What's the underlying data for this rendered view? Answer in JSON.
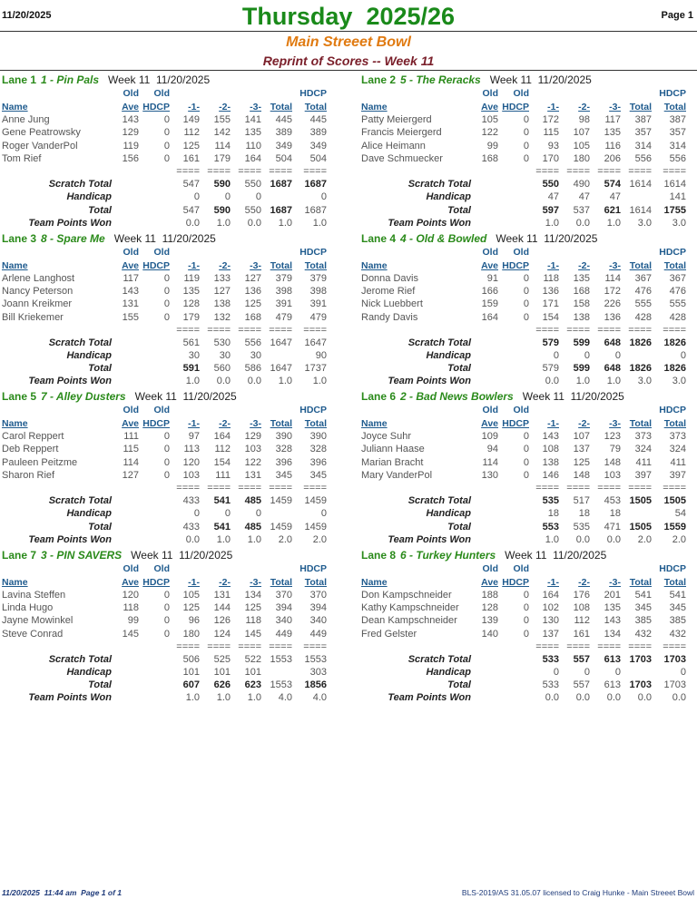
{
  "header": {
    "date": "11/20/2025",
    "title": "Thursday  2025/26",
    "page": "Page 1",
    "bowl": "Main Streeet Bowl",
    "subtitle": "Reprint of Scores -- Week 11"
  },
  "columns": {
    "top": [
      "Old",
      "Old",
      "HDCP"
    ],
    "bottom": [
      "Name",
      "Ave",
      "HDCP",
      "-1-",
      "-2-",
      "-3-",
      "Total",
      "Total"
    ]
  },
  "separator": "====",
  "summary_labels": [
    "Scratch Total",
    "Handicap",
    "Total",
    "Team Points Won"
  ],
  "lanes": [
    {
      "lane": "Lane 1",
      "team": "1 - Pin Pals",
      "week": "Week 11  11/20/2025",
      "players": [
        [
          "Anne Jung",
          143,
          0,
          149,
          155,
          141,
          445,
          445
        ],
        [
          "Gene Peatrowsky",
          129,
          0,
          112,
          142,
          135,
          389,
          389
        ],
        [
          "Roger VanderPol",
          119,
          0,
          125,
          114,
          110,
          349,
          349
        ],
        [
          "Tom Rief",
          156,
          0,
          161,
          179,
          164,
          504,
          504
        ]
      ],
      "summary": [
        {
          "values": [
            547,
            590,
            550,
            1687,
            1687
          ],
          "bold": [
            1,
            3,
            4
          ]
        },
        {
          "values": [
            0,
            0,
            0,
            null,
            0
          ],
          "bold": []
        },
        {
          "values": [
            547,
            590,
            550,
            1687,
            1687
          ],
          "bold": [
            1,
            3
          ]
        },
        {
          "values": [
            "0.0",
            "1.0",
            "0.0",
            "1.0",
            "1.0"
          ],
          "bold": []
        }
      ]
    },
    {
      "lane": "Lane 2",
      "team": "5 - The Reracks",
      "week": "Week 11  11/20/2025",
      "players": [
        [
          "Patty Meiergerd",
          105,
          0,
          172,
          98,
          117,
          387,
          387
        ],
        [
          "Francis Meiergerd",
          122,
          0,
          115,
          107,
          135,
          357,
          357
        ],
        [
          "Alice Heimann",
          99,
          0,
          93,
          105,
          116,
          314,
          314
        ],
        [
          "Dave Schmuecker",
          168,
          0,
          170,
          180,
          206,
          556,
          556
        ]
      ],
      "summary": [
        {
          "values": [
            550,
            490,
            574,
            1614,
            1614
          ],
          "bold": [
            0,
            2
          ]
        },
        {
          "values": [
            47,
            47,
            47,
            null,
            141
          ],
          "bold": []
        },
        {
          "values": [
            597,
            537,
            621,
            1614,
            1755
          ],
          "bold": [
            0,
            2,
            4
          ]
        },
        {
          "values": [
            "1.0",
            "0.0",
            "1.0",
            "3.0",
            "3.0"
          ],
          "bold": []
        }
      ]
    },
    {
      "lane": "Lane 3",
      "team": "8 - Spare Me",
      "week": "Week 11  11/20/2025",
      "players": [
        [
          "Arlene Langhost",
          117,
          0,
          119,
          133,
          127,
          379,
          379
        ],
        [
          "Nancy Peterson",
          143,
          0,
          135,
          127,
          136,
          398,
          398
        ],
        [
          "Joann Kreikmer",
          131,
          0,
          128,
          138,
          125,
          391,
          391
        ],
        [
          "Bill Kriekemer",
          155,
          0,
          179,
          132,
          168,
          479,
          479
        ]
      ],
      "summary": [
        {
          "values": [
            561,
            530,
            556,
            1647,
            1647
          ],
          "bold": []
        },
        {
          "values": [
            30,
            30,
            30,
            null,
            90
          ],
          "bold": []
        },
        {
          "values": [
            591,
            560,
            586,
            1647,
            1737
          ],
          "bold": [
            0
          ]
        },
        {
          "values": [
            "1.0",
            "0.0",
            "0.0",
            "1.0",
            "1.0"
          ],
          "bold": []
        }
      ]
    },
    {
      "lane": "Lane 4",
      "team": "4 - Old & Bowled",
      "week": "Week 11  11/20/2025",
      "players": [
        [
          "Donna Davis",
          91,
          0,
          118,
          135,
          114,
          367,
          367
        ],
        [
          "Jerome Rief",
          166,
          0,
          136,
          168,
          172,
          476,
          476
        ],
        [
          "Nick Luebbert",
          159,
          0,
          171,
          158,
          226,
          555,
          555
        ],
        [
          "Randy Davis",
          164,
          0,
          154,
          138,
          136,
          428,
          428
        ]
      ],
      "summary": [
        {
          "values": [
            579,
            599,
            648,
            1826,
            1826
          ],
          "bold": [
            0,
            1,
            2,
            3,
            4
          ]
        },
        {
          "values": [
            0,
            0,
            0,
            null,
            0
          ],
          "bold": []
        },
        {
          "values": [
            579,
            599,
            648,
            1826,
            1826
          ],
          "bold": [
            1,
            2,
            3,
            4
          ]
        },
        {
          "values": [
            "0.0",
            "1.0",
            "1.0",
            "3.0",
            "3.0"
          ],
          "bold": []
        }
      ]
    },
    {
      "lane": "Lane 5",
      "team": "7 - Alley Dusters",
      "week": "Week 11  11/20/2025",
      "players": [
        [
          "Carol Reppert",
          111,
          0,
          97,
          164,
          129,
          390,
          390
        ],
        [
          "Deb Reppert",
          115,
          0,
          113,
          112,
          103,
          328,
          328
        ],
        [
          "Pauleen Peitzme",
          114,
          0,
          120,
          154,
          122,
          396,
          396
        ],
        [
          "Sharon Rief",
          127,
          0,
          103,
          111,
          131,
          345,
          345
        ]
      ],
      "summary": [
        {
          "values": [
            433,
            541,
            485,
            1459,
            1459
          ],
          "bold": [
            1,
            2
          ]
        },
        {
          "values": [
            0,
            0,
            0,
            null,
            0
          ],
          "bold": []
        },
        {
          "values": [
            433,
            541,
            485,
            1459,
            1459
          ],
          "bold": [
            1,
            2
          ]
        },
        {
          "values": [
            "0.0",
            "1.0",
            "1.0",
            "2.0",
            "2.0"
          ],
          "bold": []
        }
      ]
    },
    {
      "lane": "Lane 6",
      "team": "2 - Bad News Bowlers",
      "week": "Week 11  11/20/2025",
      "players": [
        [
          "Joyce Suhr",
          109,
          0,
          143,
          107,
          123,
          373,
          373
        ],
        [
          "Juliann Haase",
          94,
          0,
          108,
          137,
          79,
          324,
          324
        ],
        [
          "Marian Bracht",
          114,
          0,
          138,
          125,
          148,
          411,
          411
        ],
        [
          "Mary VanderPol",
          130,
          0,
          146,
          148,
          103,
          397,
          397
        ]
      ],
      "summary": [
        {
          "values": [
            535,
            517,
            453,
            1505,
            1505
          ],
          "bold": [
            0,
            3,
            4
          ]
        },
        {
          "values": [
            18,
            18,
            18,
            null,
            54
          ],
          "bold": []
        },
        {
          "values": [
            553,
            535,
            471,
            1505,
            1559
          ],
          "bold": [
            0,
            3,
            4
          ]
        },
        {
          "values": [
            "1.0",
            "0.0",
            "0.0",
            "2.0",
            "2.0"
          ],
          "bold": []
        }
      ]
    },
    {
      "lane": "Lane 7",
      "team": "3 - PIN SAVERS",
      "week": "Week 11  11/20/2025",
      "players": [
        [
          "Lavina Steffen",
          120,
          0,
          105,
          131,
          134,
          370,
          370
        ],
        [
          "Linda Hugo",
          118,
          0,
          125,
          144,
          125,
          394,
          394
        ],
        [
          "Jayne Mowinkel",
          99,
          0,
          96,
          126,
          118,
          340,
          340
        ],
        [
          "Steve Conrad",
          145,
          0,
          180,
          124,
          145,
          449,
          449
        ]
      ],
      "summary": [
        {
          "values": [
            506,
            525,
            522,
            1553,
            1553
          ],
          "bold": []
        },
        {
          "values": [
            101,
            101,
            101,
            null,
            303
          ],
          "bold": []
        },
        {
          "values": [
            607,
            626,
            623,
            1553,
            1856
          ],
          "bold": [
            0,
            1,
            2,
            4
          ]
        },
        {
          "values": [
            "1.0",
            "1.0",
            "1.0",
            "4.0",
            "4.0"
          ],
          "bold": []
        }
      ]
    },
    {
      "lane": "Lane 8",
      "team": "6 - Turkey Hunters",
      "week": "Week 11  11/20/2025",
      "players": [
        [
          "Don Kampschneider",
          188,
          0,
          164,
          176,
          201,
          541,
          541
        ],
        [
          "Kathy Kampschneider",
          128,
          0,
          102,
          108,
          135,
          345,
          345
        ],
        [
          "Dean Kampschneider",
          139,
          0,
          130,
          112,
          143,
          385,
          385
        ],
        [
          "Fred Gelster",
          140,
          0,
          137,
          161,
          134,
          432,
          432
        ]
      ],
      "summary": [
        {
          "values": [
            533,
            557,
            613,
            1703,
            1703
          ],
          "bold": [
            0,
            1,
            2,
            3,
            4
          ]
        },
        {
          "values": [
            0,
            0,
            0,
            null,
            0
          ],
          "bold": []
        },
        {
          "values": [
            533,
            557,
            613,
            1703,
            1703
          ],
          "bold": [
            3
          ]
        },
        {
          "values": [
            "0.0",
            "0.0",
            "0.0",
            "0.0",
            "0.0"
          ],
          "bold": []
        }
      ]
    }
  ],
  "footer": {
    "left": "11/20/2025  11:44 am  Page 1 of 1",
    "right": "BLS-2019/AS 31.05.07 licensed to Craig Hunke - Main Streeet Bowl"
  }
}
